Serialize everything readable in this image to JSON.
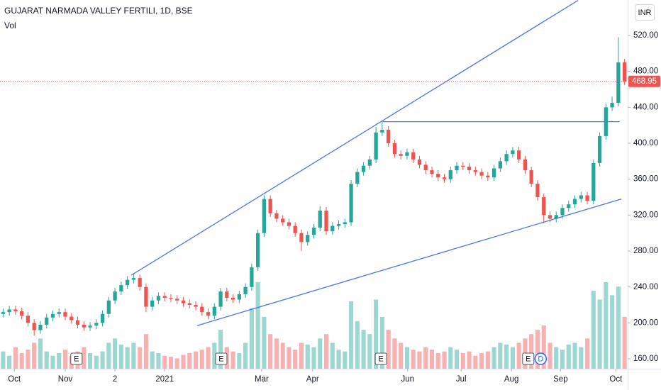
{
  "chart_data": {
    "type": "candlestick",
    "title": "GUJARAT NARMADA VALLEY FERTILI, 1D, BSE",
    "volume_label": "Vol",
    "currency": "INR",
    "up_color": "#26a69a",
    "down_color": "#ef5350",
    "drawing_color": "#4a76e8",
    "xlim": [
      -0.5,
      100.5
    ],
    "ylim": [
      149,
      559.5
    ],
    "xticks": [
      {
        "value": 1.8,
        "label": "Oct"
      },
      {
        "value": 10,
        "label": "Nov"
      },
      {
        "value": 18,
        "label": "2"
      },
      {
        "value": 26,
        "label": "2021"
      },
      {
        "value": 41.6,
        "label": "Mar"
      },
      {
        "value": 49.8,
        "label": "Apr"
      },
      {
        "value": 65.1,
        "label": "Jun"
      },
      {
        "value": 73.7,
        "label": "Jul"
      },
      {
        "value": 81.8,
        "label": "Aug"
      },
      {
        "value": 89.7,
        "label": "Sep"
      },
      {
        "value": 98.6,
        "label": "Oct"
      }
    ],
    "yticks": [
      {
        "value": 160,
        "label": "160.00"
      },
      {
        "value": 200,
        "label": "200.00"
      },
      {
        "value": 240,
        "label": "240.00"
      },
      {
        "value": 280,
        "label": "280.00"
      },
      {
        "value": 320,
        "label": "320.00"
      },
      {
        "value": 360,
        "label": "360.00"
      },
      {
        "value": 400,
        "label": "400.00"
      },
      {
        "value": 440,
        "label": "440.00"
      },
      {
        "value": 480,
        "label": "480.00"
      },
      {
        "value": 520,
        "label": "520.00"
      }
    ],
    "open": [
      210,
      212,
      215,
      213,
      208,
      200,
      192,
      198,
      206,
      210,
      212,
      207,
      203,
      198,
      195,
      197,
      200,
      210,
      225,
      235,
      242,
      248,
      250,
      240,
      218,
      225,
      230,
      228,
      227,
      225,
      222,
      220,
      218,
      212,
      208,
      218,
      235,
      228,
      226,
      232,
      240,
      262,
      300,
      338,
      322,
      316,
      312,
      308,
      300,
      290,
      298,
      306,
      325,
      302,
      308,
      310,
      312,
      355,
      368,
      375,
      382,
      412,
      415,
      400,
      388,
      386,
      390,
      382,
      376,
      370,
      366,
      362,
      360,
      370,
      375,
      374,
      370,
      368,
      364,
      362,
      372,
      380,
      388,
      392,
      382,
      370,
      355,
      340,
      320,
      316,
      320,
      328,
      332,
      338,
      342,
      336,
      378,
      408,
      440,
      445,
      490
    ],
    "high": [
      216,
      219,
      219,
      217,
      212,
      204,
      202,
      210,
      214,
      216,
      216,
      211,
      207,
      202,
      201,
      204,
      214,
      229,
      239,
      246,
      252,
      255,
      254,
      244,
      229,
      234,
      234,
      232,
      231,
      229,
      226,
      224,
      222,
      216,
      222,
      239,
      239,
      232,
      236,
      244,
      266,
      304,
      342,
      342,
      326,
      320,
      316,
      312,
      304,
      302,
      310,
      330,
      329,
      312,
      314,
      316,
      359,
      372,
      379,
      386,
      418,
      425,
      419,
      404,
      392,
      394,
      394,
      386,
      380,
      374,
      370,
      366,
      374,
      379,
      379,
      378,
      374,
      372,
      368,
      376,
      384,
      392,
      396,
      396,
      386,
      374,
      359,
      344,
      324,
      324,
      332,
      336,
      342,
      346,
      346,
      382,
      412,
      444,
      452,
      518,
      494
    ],
    "low": [
      206,
      208,
      209,
      204,
      196,
      186,
      188,
      194,
      202,
      206,
      203,
      199,
      194,
      191,
      191,
      193,
      196,
      206,
      221,
      231,
      238,
      244,
      236,
      212,
      214,
      221,
      224,
      223,
      221,
      218,
      216,
      214,
      208,
      204,
      204,
      214,
      224,
      222,
      222,
      228,
      236,
      258,
      296,
      318,
      312,
      308,
      304,
      296,
      280,
      286,
      294,
      302,
      298,
      298,
      304,
      306,
      308,
      351,
      364,
      371,
      378,
      408,
      396,
      384,
      382,
      382,
      378,
      372,
      366,
      362,
      358,
      356,
      356,
      366,
      370,
      366,
      364,
      360,
      358,
      358,
      368,
      376,
      384,
      378,
      366,
      351,
      336,
      312,
      312,
      312,
      316,
      324,
      328,
      334,
      332,
      332,
      374,
      404,
      436,
      441,
      465
    ],
    "close": [
      212,
      215,
      213,
      208,
      200,
      192,
      198,
      206,
      210,
      212,
      207,
      203,
      198,
      195,
      197,
      200,
      210,
      225,
      235,
      242,
      248,
      250,
      240,
      218,
      225,
      230,
      228,
      227,
      225,
      222,
      220,
      218,
      212,
      208,
      218,
      235,
      228,
      226,
      232,
      240,
      262,
      300,
      338,
      322,
      316,
      312,
      308,
      300,
      290,
      298,
      306,
      325,
      302,
      308,
      310,
      312,
      355,
      368,
      375,
      382,
      412,
      415,
      400,
      388,
      386,
      390,
      382,
      376,
      370,
      366,
      362,
      360,
      370,
      375,
      374,
      370,
      368,
      364,
      362,
      372,
      380,
      388,
      392,
      382,
      370,
      355,
      340,
      320,
      316,
      320,
      328,
      332,
      338,
      342,
      336,
      378,
      408,
      440,
      445,
      490,
      468.95
    ],
    "volume": [
      20,
      15,
      25,
      18,
      22,
      30,
      35,
      20,
      15,
      18,
      22,
      15,
      20,
      25,
      18,
      15,
      20,
      30,
      35,
      28,
      25,
      30,
      25,
      40,
      20,
      18,
      15,
      14,
      12,
      16,
      18,
      20,
      22,
      25,
      30,
      45,
      25,
      20,
      18,
      30,
      70,
      100,
      60,
      40,
      35,
      30,
      25,
      22,
      30,
      28,
      25,
      35,
      40,
      30,
      22,
      20,
      78,
      55,
      45,
      40,
      80,
      60,
      45,
      35,
      30,
      25,
      22,
      20,
      25,
      22,
      18,
      20,
      25,
      22,
      18,
      20,
      15,
      18,
      20,
      25,
      30,
      28,
      25,
      30,
      35,
      40,
      45,
      50,
      30,
      25,
      22,
      28,
      30,
      25,
      35,
      90,
      80,
      100,
      85,
      95,
      60
    ],
    "trendlines": [
      {
        "x": [
          20.6,
          92.5
        ],
        "y": [
          253,
          559
        ]
      },
      {
        "x": [
          31.2,
          99.5
        ],
        "y": [
          197,
          338
        ]
      },
      {
        "x": [
          61.1,
          99.2
        ],
        "y": [
          424,
          424
        ]
      }
    ],
    "events": [
      {
        "x": 11.8,
        "label": "E"
      },
      {
        "x": 35.1,
        "label": "E"
      },
      {
        "x": 60.8,
        "label": "E"
      },
      {
        "x": 84.5,
        "label": "E"
      },
      {
        "x": 86.5,
        "label": "D"
      }
    ]
  }
}
